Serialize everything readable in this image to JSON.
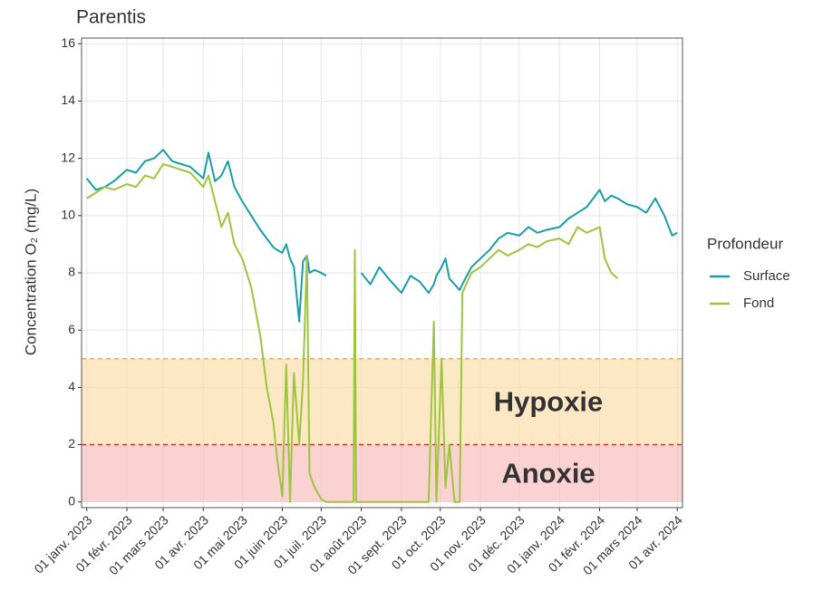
{
  "chart_data": {
    "type": "line",
    "title": "Parentis",
    "ylabel": "Concentration  O₂ (mg/L)",
    "legend_title": "Profondeur",
    "legend": "right",
    "grid": true,
    "xlim": [
      "2022-12-28",
      "2024-04-05"
    ],
    "ylim": [
      -0.2,
      16.2
    ],
    "yticks": [
      0,
      2,
      4,
      6,
      8,
      10,
      12,
      14,
      16
    ],
    "xticks": [
      {
        "value": "2023-01-01",
        "label": "01 janv. 2023"
      },
      {
        "value": "2023-02-01",
        "label": "01 févr. 2023"
      },
      {
        "value": "2023-03-01",
        "label": "01 mars 2023"
      },
      {
        "value": "2023-04-01",
        "label": "01 avr. 2023"
      },
      {
        "value": "2023-05-01",
        "label": "01 mai 2023"
      },
      {
        "value": "2023-06-01",
        "label": "01 juin 2023"
      },
      {
        "value": "2023-07-01",
        "label": "01 juil. 2023"
      },
      {
        "value": "2023-08-01",
        "label": "01 août 2023"
      },
      {
        "value": "2023-09-01",
        "label": "01 sept. 2023"
      },
      {
        "value": "2023-10-01",
        "label": "01 oct. 2023"
      },
      {
        "value": "2023-11-01",
        "label": "01 nov. 2023"
      },
      {
        "value": "2023-12-01",
        "label": "01 déc. 2023"
      },
      {
        "value": "2024-01-01",
        "label": "01 janv. 2024"
      },
      {
        "value": "2024-02-01",
        "label": "01 févr. 2024"
      },
      {
        "value": "2024-03-01",
        "label": "01 mars 2024"
      },
      {
        "value": "2024-04-01",
        "label": "01 avr. 2024"
      }
    ],
    "zones": [
      {
        "label": "Hypoxie",
        "from": 2,
        "to": 5,
        "color": "#fcd9a0",
        "line_color": "#f0b040",
        "text_color": "#f7941d"
      },
      {
        "label": "Anoxie",
        "from": 0,
        "to": 2,
        "color": "#f8b4b4",
        "line_color": "#c0392b",
        "text_color": "#f24a1e"
      }
    ],
    "x": [
      "2023-01-01",
      "2023-01-08",
      "2023-01-15",
      "2023-01-22",
      "2023-02-01",
      "2023-02-08",
      "2023-02-15",
      "2023-02-22",
      "2023-03-01",
      "2023-03-08",
      "2023-03-15",
      "2023-03-22",
      "2023-04-01",
      "2023-04-05",
      "2023-04-10",
      "2023-04-15",
      "2023-04-20",
      "2023-04-25",
      "2023-05-01",
      "2023-05-08",
      "2023-05-15",
      "2023-05-20",
      "2023-05-25",
      "2023-05-28",
      "2023-06-01",
      "2023-06-04",
      "2023-06-07",
      "2023-06-10",
      "2023-06-14",
      "2023-06-17",
      "2023-06-20",
      "2023-06-22",
      "2023-06-26",
      "2023-07-01",
      "2023-07-05",
      "2023-07-15",
      "2023-07-26",
      "2023-07-27",
      "2023-07-28",
      "2023-08-01",
      "2023-08-08",
      "2023-08-15",
      "2023-08-22",
      "2023-09-01",
      "2023-09-08",
      "2023-09-15",
      "2023-09-22",
      "2023-09-26",
      "2023-09-28",
      "2023-10-02",
      "2023-10-05",
      "2023-10-08",
      "2023-10-12",
      "2023-10-16",
      "2023-10-18",
      "2023-10-25",
      "2023-11-01",
      "2023-11-08",
      "2023-11-15",
      "2023-11-22",
      "2023-12-01",
      "2023-12-08",
      "2023-12-15",
      "2023-12-22",
      "2024-01-01",
      "2024-01-08",
      "2024-01-15",
      "2024-01-22",
      "2024-02-01",
      "2024-02-05",
      "2024-02-10",
      "2024-02-15",
      "2024-02-22",
      "2024-03-01",
      "2024-03-08",
      "2024-03-15",
      "2024-03-22",
      "2024-03-28",
      "2024-04-01"
    ],
    "series": [
      {
        "name": "Surface",
        "color": "#1a9ea6",
        "values": [
          11.3,
          10.9,
          11.0,
          11.2,
          11.6,
          11.5,
          11.9,
          12.0,
          12.3,
          11.9,
          11.8,
          11.7,
          11.3,
          12.2,
          11.2,
          11.4,
          11.9,
          11.0,
          10.5,
          10.0,
          9.5,
          9.2,
          8.9,
          8.8,
          8.7,
          9.0,
          8.5,
          8.2,
          6.3,
          8.4,
          8.6,
          8.0,
          8.1,
          8.0,
          7.9,
          null,
          null,
          null,
          null,
          8.0,
          7.6,
          8.2,
          7.8,
          7.3,
          7.9,
          7.7,
          7.3,
          7.6,
          7.9,
          8.2,
          8.5,
          7.8,
          7.6,
          7.4,
          7.6,
          8.2,
          8.5,
          8.8,
          9.2,
          9.4,
          9.3,
          9.6,
          9.4,
          9.5,
          9.6,
          9.9,
          10.1,
          10.3,
          10.9,
          10.5,
          10.7,
          10.6,
          10.4,
          10.3,
          10.1,
          10.6,
          10.0,
          9.3,
          9.4
        ]
      },
      {
        "name": "Fond",
        "color": "#9dc43d",
        "values": [
          10.6,
          10.8,
          11.0,
          10.9,
          11.1,
          11.0,
          11.4,
          11.3,
          11.8,
          11.7,
          11.6,
          11.5,
          11.0,
          11.4,
          10.5,
          9.6,
          10.1,
          9.0,
          8.5,
          7.5,
          5.8,
          4.0,
          2.8,
          1.5,
          0.2,
          4.8,
          0.0,
          4.5,
          2.0,
          4.2,
          8.6,
          1.0,
          0.5,
          0.1,
          0.0,
          0.0,
          0.0,
          8.8,
          0.0,
          0.0,
          0.0,
          0.0,
          0.0,
          0.0,
          0.0,
          0.0,
          0.0,
          6.3,
          0.0,
          5.0,
          0.5,
          2.0,
          0.0,
          0.0,
          7.3,
          8.0,
          8.2,
          8.5,
          8.8,
          8.6,
          8.8,
          9.0,
          8.9,
          9.1,
          9.2,
          9.0,
          9.6,
          9.4,
          9.6,
          8.5,
          8.0,
          7.8,
          null,
          null,
          null,
          null,
          null,
          null,
          null
        ]
      }
    ]
  }
}
